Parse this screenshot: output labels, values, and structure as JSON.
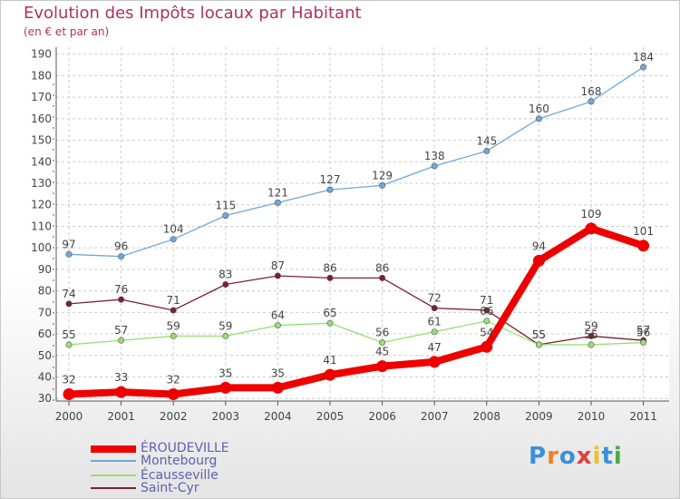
{
  "header": {
    "title": "Evolution des Impôts locaux par Habitant",
    "subtitle": "(en € et par an)"
  },
  "logo": {
    "letters": [
      "P",
      "r",
      "o",
      "x",
      "i",
      "t",
      "i"
    ],
    "colors": [
      "#3a8fd8",
      "#f08020",
      "#3a8fd8",
      "#e04040",
      "#f0c020",
      "#3a8fd8",
      "#40b040"
    ]
  },
  "chart_data": {
    "type": "line",
    "title": "Evolution des Impôts locaux par Habitant",
    "subtitle": "(en € et par an)",
    "xlabel": "",
    "ylabel": "",
    "categories": [
      "2000",
      "2001",
      "2002",
      "2003",
      "2004",
      "2005",
      "2006",
      "2007",
      "2008",
      "2009",
      "2010",
      "2011"
    ],
    "ylim": [
      30,
      190
    ],
    "yticks": [
      30,
      40,
      50,
      60,
      70,
      80,
      90,
      100,
      110,
      120,
      130,
      140,
      150,
      160,
      170,
      180,
      190
    ],
    "grid": true,
    "legend_position": "bottom-left",
    "series": [
      {
        "name": "Montebourg",
        "color": "#6fa8dc",
        "values": [
          97,
          96,
          104,
          115,
          121,
          127,
          129,
          138,
          145,
          160,
          168,
          184
        ]
      },
      {
        "name": "Saint-Cyr",
        "color": "#7a2030",
        "values": [
          74,
          76,
          71,
          83,
          87,
          86,
          86,
          72,
          71,
          55,
          59,
          57
        ]
      },
      {
        "name": "Écausseville",
        "color": "#99dd77",
        "values": [
          55,
          57,
          59,
          59,
          64,
          65,
          56,
          61,
          66,
          55,
          55,
          56
        ]
      },
      {
        "name": "ÉROUDEVILLE",
        "color": "#ee0000",
        "values": [
          32,
          33,
          32,
          35,
          35,
          41,
          45,
          47,
          54,
          94,
          109,
          101
        ]
      }
    ],
    "legend_order": [
      "ÉROUDEVILLE",
      "Montebourg",
      "Écausseville",
      "Saint-Cyr"
    ]
  }
}
